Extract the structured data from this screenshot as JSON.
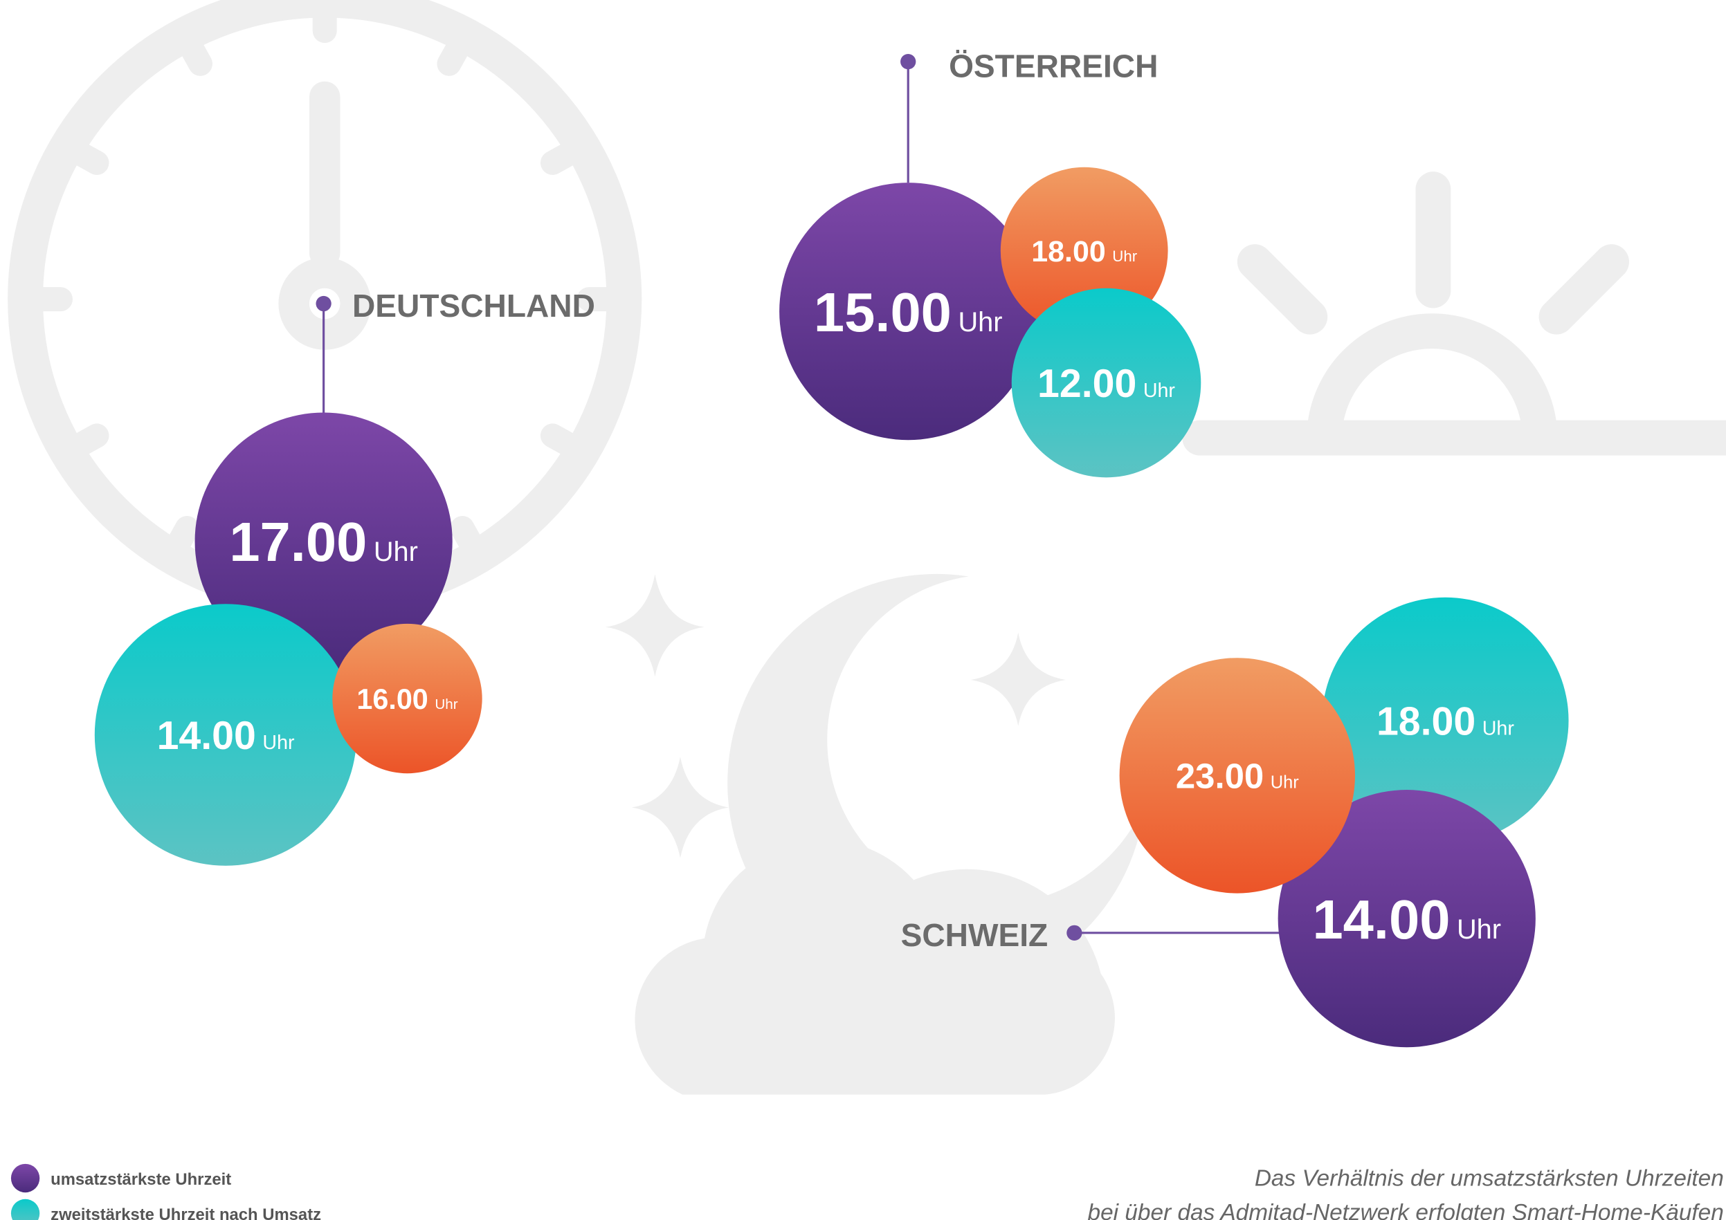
{
  "countries": [
    {
      "name": "DEUTSCHLAND",
      "bubbles": [
        {
          "time": "17.00",
          "unit": "Uhr"
        },
        {
          "time": "14.00",
          "unit": "Uhr"
        },
        {
          "time": "16.00",
          "unit": "Uhr"
        }
      ]
    },
    {
      "name": "ÖSTERREICH",
      "bubbles": [
        {
          "time": "15.00",
          "unit": "Uhr"
        },
        {
          "time": "12.00",
          "unit": "Uhr"
        },
        {
          "time": "18.00",
          "unit": "Uhr"
        }
      ]
    },
    {
      "name": "SCHWEIZ",
      "bubbles": [
        {
          "time": "14.00",
          "unit": "Uhr"
        },
        {
          "time": "18.00",
          "unit": "Uhr"
        },
        {
          "time": "23.00",
          "unit": "Uhr"
        }
      ]
    }
  ],
  "legend": [
    "umsatzstärkste Uhrzeit",
    "zweitstärkste Uhrzeit nach Umsatz"
  ],
  "caption": [
    "Das Verhältnis der umsatzstärksten Uhrzeiten",
    "bei über das Admitad-Netzwerk erfolgten Smart-Home-Käufen"
  ]
}
